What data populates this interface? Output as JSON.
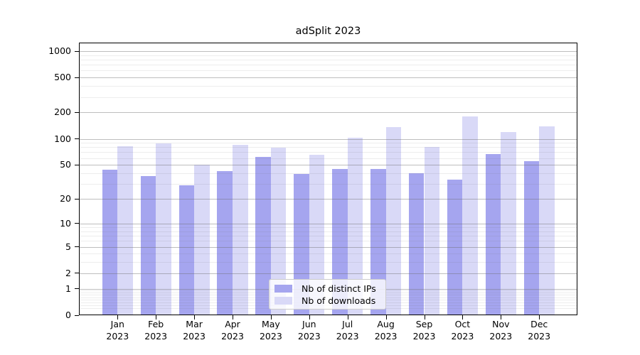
{
  "title": "adSplit 2023",
  "colors": {
    "distinct_ips": "#a5a5ef",
    "downloads": "#d9d9f7",
    "axis": "#000000",
    "grid_major": "rgba(110,110,110,0.45)",
    "grid_minor": "rgba(110,110,110,0.12)",
    "legend_border": "#cccccc"
  },
  "legend": {
    "items": [
      {
        "key": "distinct_ips",
        "label": "Nb of distinct IPs"
      },
      {
        "key": "downloads",
        "label": "Nb of downloads"
      }
    ]
  },
  "y_axis": {
    "tick_labels": [
      "1000",
      "500",
      "200",
      "100",
      "50",
      "20",
      "10",
      "5",
      "2",
      "1",
      "0"
    ]
  },
  "x_axis": {
    "months": [
      "Jan",
      "Feb",
      "Mar",
      "Apr",
      "May",
      "Jun",
      "Jul",
      "Aug",
      "Sep",
      "Oct",
      "Nov",
      "Dec"
    ],
    "year": "2023"
  },
  "chart_data": {
    "type": "bar",
    "title": "adSplit 2023",
    "categories": [
      "Jan 2023",
      "Feb 2023",
      "Mar 2023",
      "Apr 2023",
      "May 2023",
      "Jun 2023",
      "Jul 2023",
      "Aug 2023",
      "Sep 2023",
      "Oct 2023",
      "Nov 2023",
      "Dec 2023"
    ],
    "series": [
      {
        "name": "Nb of distinct IPs",
        "color_key": "distinct_ips",
        "values": [
          44,
          37,
          29,
          42,
          62,
          39,
          45,
          45,
          40,
          34,
          67,
          55
        ]
      },
      {
        "name": "Nb of downloads",
        "color_key": "downloads",
        "values": [
          82,
          88,
          50,
          85,
          79,
          66,
          102,
          136,
          80,
          180,
          120,
          139
        ]
      }
    ],
    "y_scale": "symlog ln(1+v)",
    "ylim": [
      0,
      1250
    ],
    "y_ticks": [
      1000,
      500,
      200,
      100,
      50,
      20,
      10,
      5,
      2,
      1,
      0
    ],
    "y_minor_ticks": [
      0.2,
      0.3,
      0.4,
      0.5,
      0.6,
      0.7,
      0.8,
      0.9,
      3,
      4,
      6,
      7,
      8,
      9,
      30,
      40,
      60,
      70,
      80,
      90,
      300,
      400,
      600,
      700,
      800,
      900
    ],
    "xlabel": "",
    "ylabel": "",
    "grid": "horizontal major + minor",
    "legend_position": "inside lower-center"
  }
}
